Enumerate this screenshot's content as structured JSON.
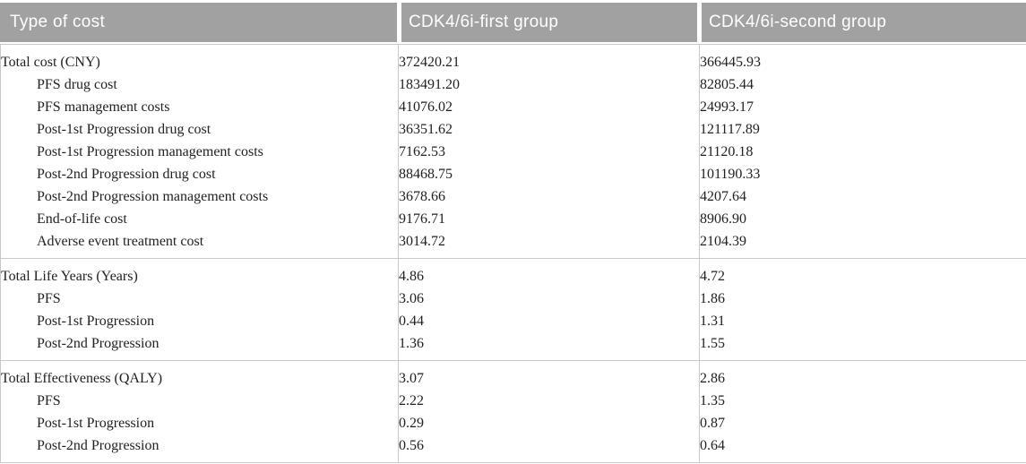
{
  "table": {
    "header": {
      "col1": "Type of cost",
      "col2": "CDK4/6i-first group",
      "col3": "CDK4/6i-second group"
    },
    "sections": [
      {
        "rows": [
          {
            "label": "Total cost (CNY)",
            "first": "372420.21",
            "second": "366445.93"
          },
          {
            "label": "PFS drug cost",
            "first": "183491.20",
            "second": "82805.44"
          },
          {
            "label": "PFS management costs",
            "first": "41076.02",
            "second": "24993.17"
          },
          {
            "label": "Post-1st Progression drug cost",
            "first": "36351.62",
            "second": "121117.89"
          },
          {
            "label": "Post-1st Progression management costs",
            "first": "7162.53",
            "second": "21120.18"
          },
          {
            "label": "Post-2nd Progression drug cost",
            "first": "88468.75",
            "second": "101190.33"
          },
          {
            "label": "Post-2nd Progression management costs",
            "first": "3678.66",
            "second": "4207.64"
          },
          {
            "label": "End-of-life cost",
            "first": "9176.71",
            "second": "8906.90"
          },
          {
            "label": "Adverse event treatment cost",
            "first": "3014.72",
            "second": "2104.39"
          }
        ]
      },
      {
        "rows": [
          {
            "label": "Total Life Years (Years)",
            "first": "4.86",
            "second": "4.72"
          },
          {
            "label": "PFS",
            "first": "3.06",
            "second": "1.86"
          },
          {
            "label": "Post-1st Progression",
            "first": "0.44",
            "second": "1.31"
          },
          {
            "label": "Post-2nd Progression",
            "first": "1.36",
            "second": "1.55"
          }
        ]
      },
      {
        "rows": [
          {
            "label": "Total Effectiveness (QALY)",
            "first": "3.07",
            "second": "2.86"
          },
          {
            "label": "PFS",
            "first": "2.22",
            "second": "1.35"
          },
          {
            "label": "Post-1st Progression",
            "first": "0.29",
            "second": "0.87"
          },
          {
            "label": "Post-2nd Progression",
            "first": "0.56",
            "second": "0.64"
          }
        ]
      }
    ]
  },
  "colors": {
    "header_background": "#a1a1a1",
    "header_text": "#ffffff",
    "border": "#c9c9c9",
    "body_text": "#212121"
  }
}
